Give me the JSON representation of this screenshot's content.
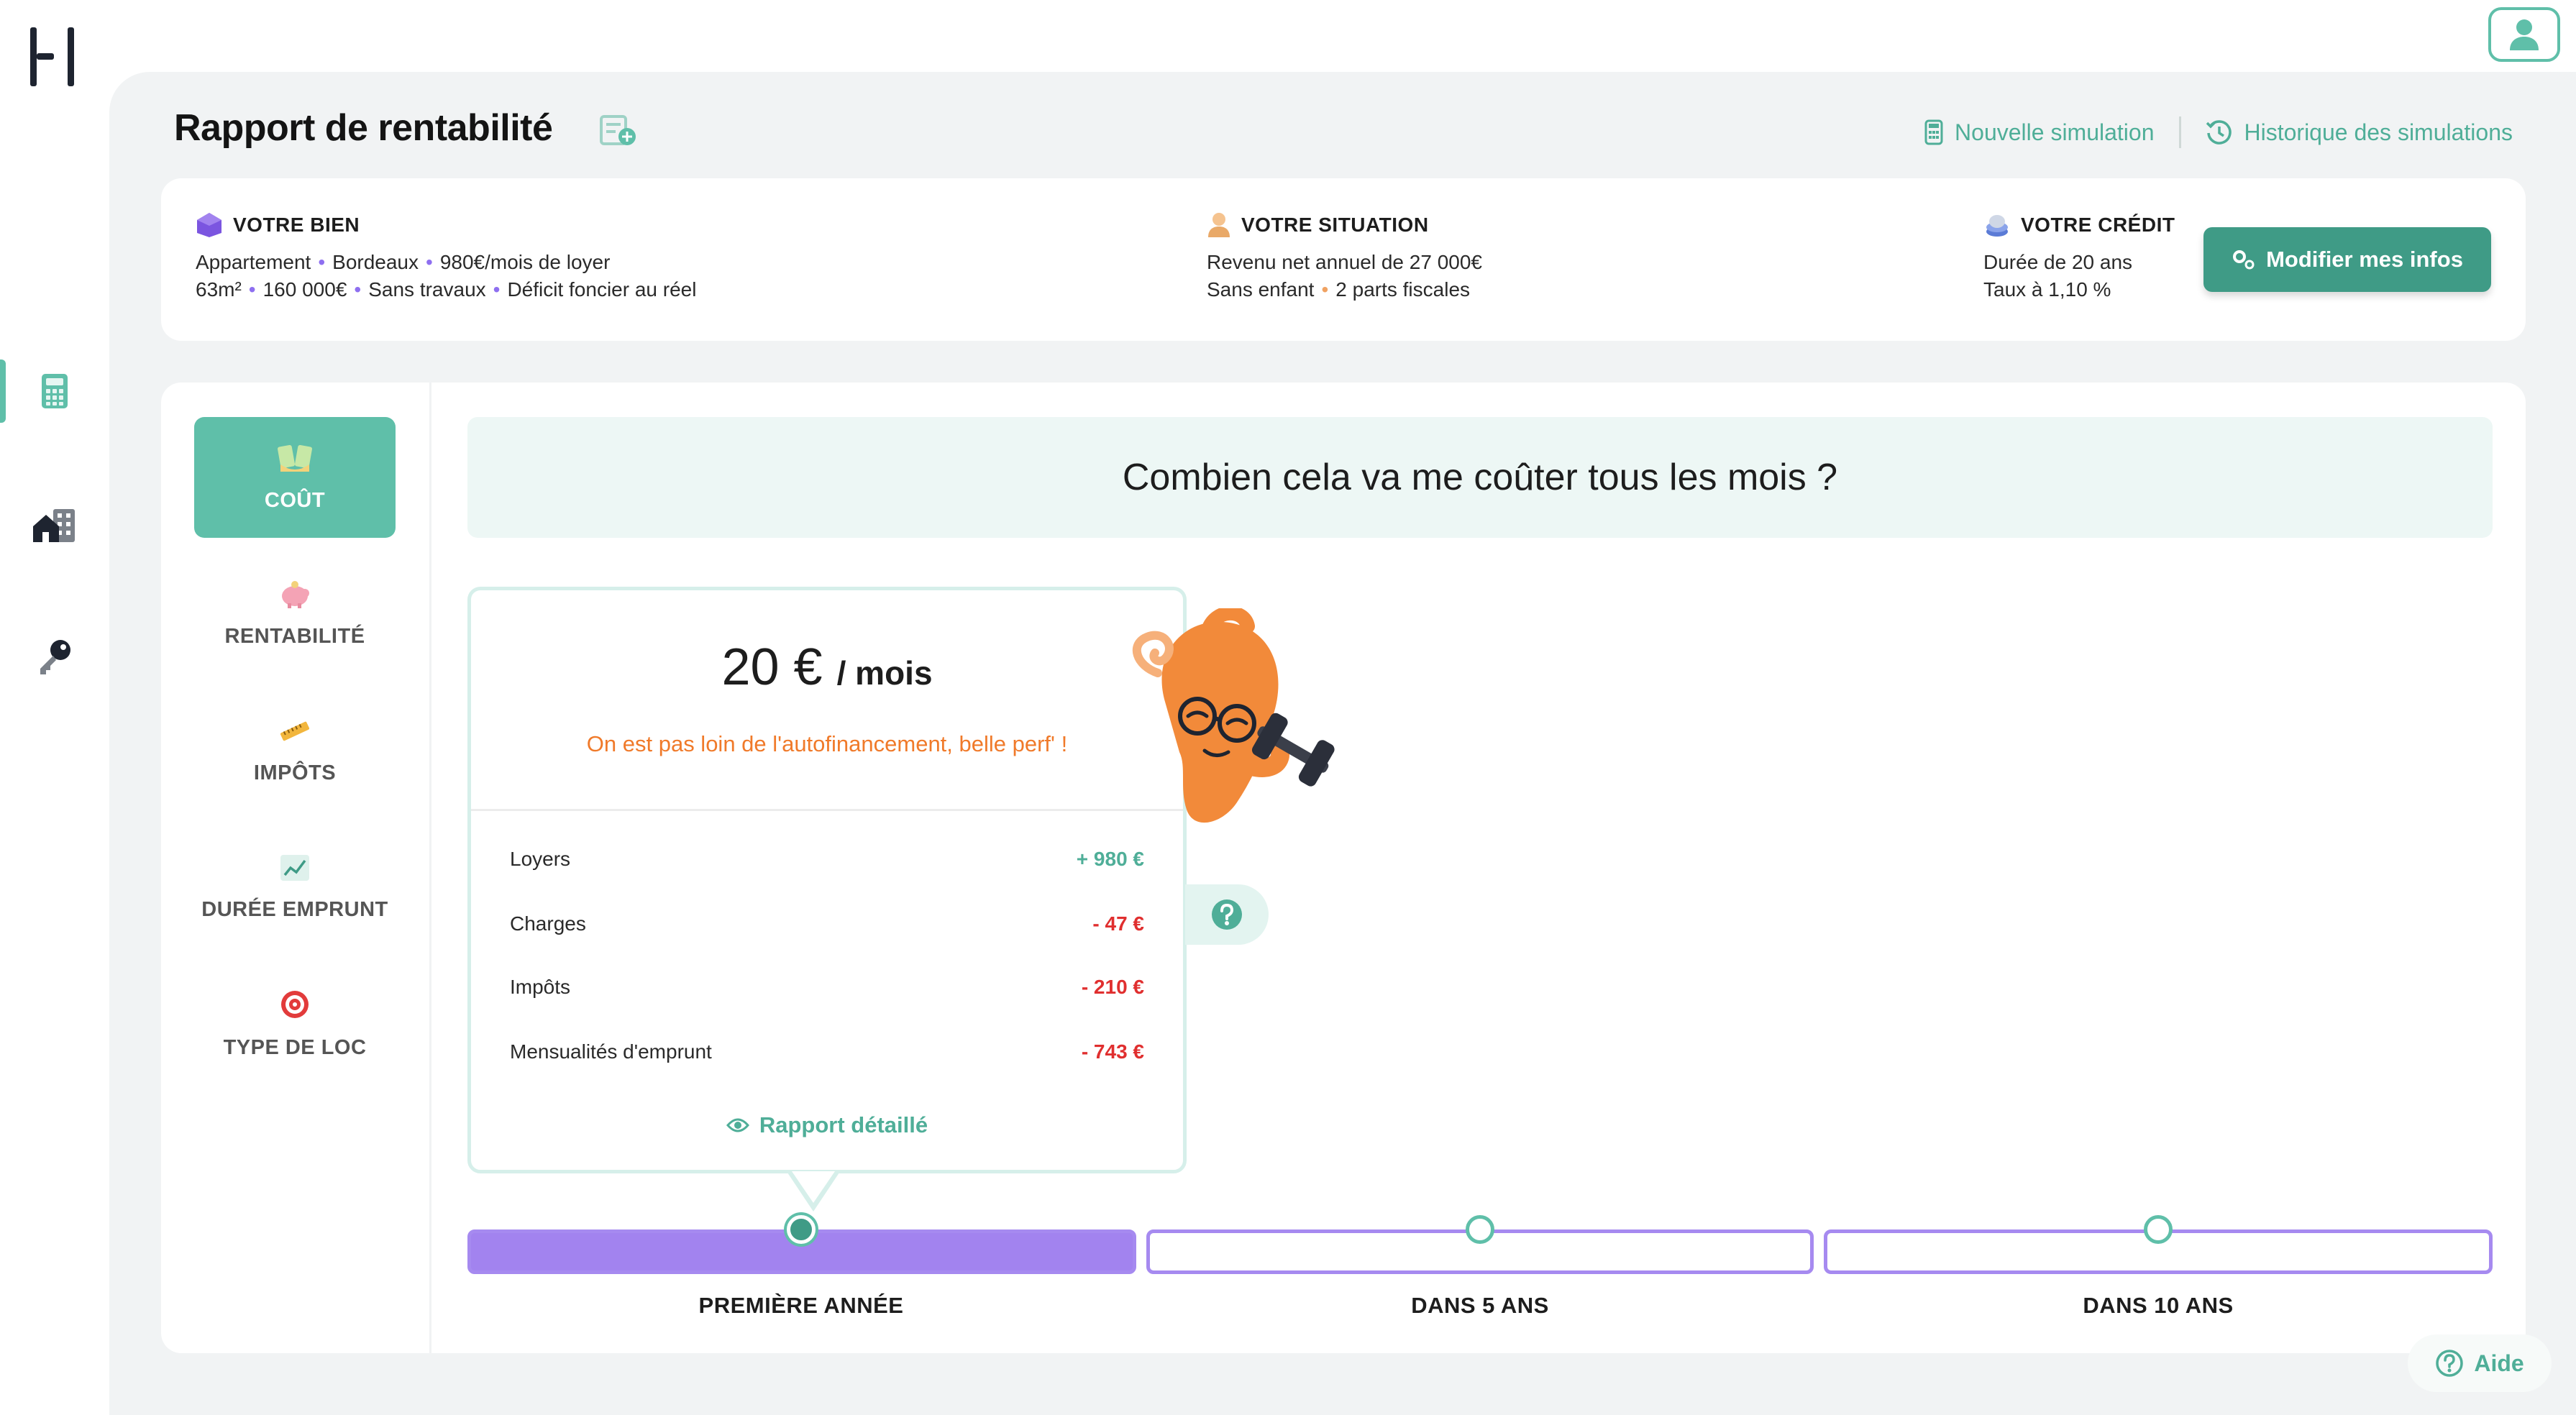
{
  "header": {
    "title": "Rapport de rentabilité",
    "links": [
      {
        "label": "Nouvelle simulation",
        "icon": "calculator-icon"
      },
      {
        "label": "Historique des simulations",
        "icon": "history-icon"
      }
    ]
  },
  "sidebar": {
    "items": [
      {
        "icon": "calculator-icon",
        "active": true
      },
      {
        "icon": "buildings-icon",
        "active": false
      },
      {
        "icon": "key-icon",
        "active": false
      }
    ]
  },
  "info": {
    "bien": {
      "title": "VOTRE BIEN",
      "line1": [
        "Appartement",
        "Bordeaux",
        "980€/mois de loyer"
      ],
      "line2": [
        "63m²",
        "160 000€",
        "Sans travaux",
        "Déficit foncier au réel"
      ]
    },
    "situation": {
      "title": "VOTRE SITUATION",
      "line1": "Revenu net annuel de 27 000€",
      "line2": [
        "Sans enfant",
        "2 parts fiscales"
      ]
    },
    "credit": {
      "title": "VOTRE CRÉDIT",
      "line1": "Durée de 20 ans",
      "line2": "Taux à 1,10 %"
    },
    "modify_label": "Modifier mes infos"
  },
  "nav": {
    "items": [
      {
        "label": "COÛT",
        "active": true
      },
      {
        "label": "RENTABILITÉ",
        "active": false
      },
      {
        "label": "IMPÔTS",
        "active": false
      },
      {
        "label": "DURÉE EMPRUNT",
        "active": false
      },
      {
        "label": "TYPE DE LOC",
        "active": false
      }
    ]
  },
  "question": "Combien cela va me coûter tous les mois ?",
  "cost": {
    "amount": "20 €",
    "unit": "/ mois",
    "message": "On est pas loin de l'autofinancement, belle perf' !",
    "rows": [
      {
        "label": "Loyers",
        "value": "+ 980 €"
      },
      {
        "label": "Charges",
        "value": "- 47 €"
      },
      {
        "label": "Impôts",
        "value": "- 210 €"
      },
      {
        "label": "Mensualités d'emprunt",
        "value": "- 743 €"
      }
    ],
    "detail_label": "Rapport détaillé"
  },
  "timeline": {
    "labels": [
      "PREMIÈRE ANNÉE",
      "DANS 5 ANS",
      "DANS 10 ANS"
    ],
    "selected": 0
  },
  "help_label": "Aide",
  "colors": {
    "accent": "#5fbfa9",
    "accent_dark": "#3f9b86",
    "purple": "#a283ef",
    "orange": "#f07a2a",
    "negative": "#e02f2f"
  }
}
